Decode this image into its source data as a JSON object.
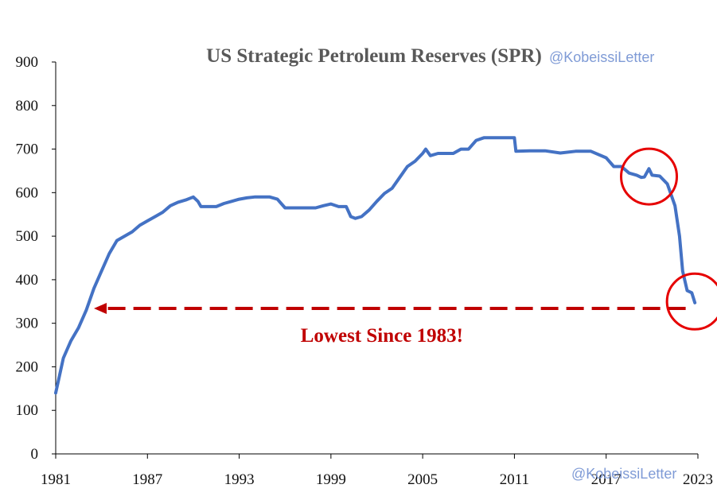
{
  "colors": {
    "series": "#4472c4",
    "annotation": "#c00000",
    "circle": "#e60000",
    "title": "#595959",
    "watermark": "#7f9bd6",
    "axis": "#000000"
  },
  "watermarks": [
    "@KobeissiLetter",
    "@KobeissiLetter"
  ],
  "chart_data": {
    "type": "line",
    "title": "US Strategic Petroleum Reserves (SPR)",
    "xlabel": "",
    "ylabel": "",
    "xlim": [
      1981,
      2023
    ],
    "ylim": [
      0,
      900
    ],
    "y_ticks": [
      0,
      100,
      200,
      300,
      400,
      500,
      600,
      700,
      800,
      900
    ],
    "x_ticks": [
      1981,
      1987,
      1993,
      1999,
      2005,
      2011,
      2017,
      2023
    ],
    "grid": false,
    "legend": "none",
    "series": [
      {
        "x": [
          1981.0,
          1981.25,
          1981.5,
          1981.75,
          1982.0,
          1982.5,
          1983.0,
          1983.5,
          1984.0,
          1984.5,
          1985.0,
          1985.5,
          1986.0,
          1986.5,
          1987.0,
          1987.5,
          1988.0,
          1988.5,
          1989.0,
          1989.5,
          1990.0,
          1990.3,
          1990.5,
          1991.0,
          1991.5,
          1992.0,
          1992.5,
          1993.0,
          1993.5,
          1994.0,
          1995.0,
          1995.5,
          1996.0,
          1996.5,
          1997.0,
          1998.0,
          1998.5,
          1999.0,
          1999.5,
          2000.0,
          2000.3,
          2000.6,
          2001.0,
          2001.5,
          2002.0,
          2002.5,
          2003.0,
          2003.5,
          2004.0,
          2004.5,
          2005.0,
          2005.2,
          2005.5,
          2006.0,
          2007.0,
          2007.5,
          2008.0,
          2008.5,
          2009.0,
          2010.0,
          2011.0,
          2011.1,
          2012.0,
          2013.0,
          2014.0,
          2015.0,
          2016.0,
          2017.0,
          2017.5,
          2018.0,
          2018.5,
          2019.0,
          2019.3,
          2019.5,
          2019.8,
          2020.0,
          2020.5,
          2021.0,
          2021.5,
          2021.8,
          2022.0,
          2022.3,
          2022.6,
          2022.8
        ],
        "values": [
          140,
          180,
          220,
          240,
          260,
          290,
          330,
          380,
          420,
          460,
          490,
          500,
          510,
          525,
          535,
          545,
          555,
          570,
          578,
          583,
          590,
          580,
          568,
          568,
          568,
          575,
          580,
          585,
          588,
          590,
          590,
          585,
          565,
          565,
          565,
          565,
          570,
          574,
          568,
          568,
          545,
          541,
          545,
          560,
          580,
          598,
          610,
          635,
          660,
          672,
          690,
          700,
          685,
          690,
          690,
          700,
          700,
          720,
          726,
          726,
          726,
          695,
          696,
          696,
          691,
          695,
          695,
          680,
          660,
          660,
          645,
          640,
          635,
          636,
          655,
          640,
          638,
          620,
          570,
          500,
          420,
          375,
          370,
          347
        ]
      }
    ],
    "annotations": [
      {
        "text": "Lowest Since 1983!",
        "arrow_from": [
          2022.2,
          334
        ],
        "arrow_to": [
          1983.5,
          334
        ]
      }
    ],
    "highlights": [
      {
        "x": 2019.8,
        "y": 637
      },
      {
        "x": 2022.8,
        "y": 350
      }
    ]
  }
}
